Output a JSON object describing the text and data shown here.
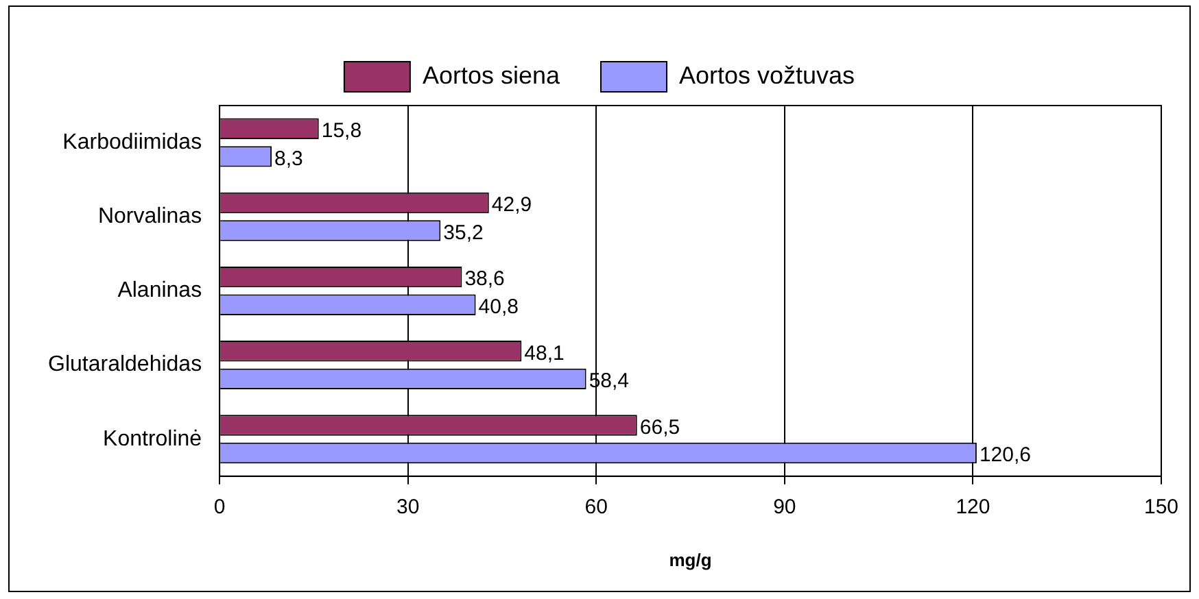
{
  "chart_data": {
    "type": "bar",
    "orientation": "horizontal",
    "xlabel": "mg/g",
    "categories": [
      "Karbodiimidas",
      "Norvalinas",
      "Alaninas",
      "Glutaraldehidas",
      "Kontrolinė"
    ],
    "series": [
      {
        "name": "Aortos siena",
        "color": "#993366",
        "values": [
          15.8,
          42.9,
          38.6,
          48.1,
          66.5
        ],
        "value_labels": [
          "15,8",
          "42,9",
          "38,6",
          "48,1",
          "66,5"
        ]
      },
      {
        "name": "Aortos vožtuvas",
        "color": "#9999ff",
        "values": [
          8.3,
          35.2,
          40.8,
          58.4,
          120.6
        ],
        "value_labels": [
          "8,3",
          "35,2",
          "40,8",
          "58,4",
          "120,6"
        ]
      }
    ],
    "xlim": [
      0,
      150
    ],
    "xticks": [
      0,
      30,
      60,
      90,
      120,
      150
    ],
    "grid": "x",
    "legend": "top"
  }
}
